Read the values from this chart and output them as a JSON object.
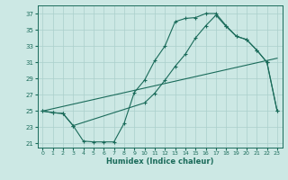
{
  "xlabel": "Humidex (Indice chaleur)",
  "bg_color": "#cce8e4",
  "line_color": "#1a6b5a",
  "grid_color": "#aacfcb",
  "xlim": [
    -0.5,
    23.5
  ],
  "ylim": [
    20.5,
    38.0
  ],
  "xticks": [
    0,
    1,
    2,
    3,
    4,
    5,
    6,
    7,
    8,
    9,
    10,
    11,
    12,
    13,
    14,
    15,
    16,
    17,
    18,
    19,
    20,
    21,
    22,
    23
  ],
  "yticks": [
    21,
    23,
    25,
    27,
    29,
    31,
    33,
    35,
    37
  ],
  "line1_x": [
    0,
    1,
    2,
    3,
    4,
    5,
    6,
    7,
    8,
    9,
    10,
    11,
    12,
    13,
    14,
    15,
    16,
    17,
    18,
    19,
    20,
    21,
    22,
    23
  ],
  "line1_y": [
    25,
    24.8,
    24.7,
    23.2,
    21.3,
    21.2,
    21.2,
    21.2,
    23.5,
    27.3,
    28.8,
    31.2,
    33.0,
    36.0,
    36.4,
    36.5,
    37.0,
    37.0,
    35.5,
    34.2,
    33.8,
    32.5,
    31.0,
    25.0
  ],
  "line2_x": [
    0,
    1,
    2,
    3,
    10,
    11,
    12,
    13,
    14,
    15,
    16,
    17,
    18,
    19,
    20,
    21,
    22,
    23
  ],
  "line2_y": [
    25,
    24.8,
    24.7,
    23.2,
    26.0,
    27.2,
    28.8,
    30.5,
    32.0,
    34.0,
    35.5,
    36.8,
    35.4,
    34.2,
    33.8,
    32.5,
    31.0,
    25.0
  ],
  "line3_x": [
    0,
    23
  ],
  "line3_y": [
    25.0,
    31.5
  ]
}
